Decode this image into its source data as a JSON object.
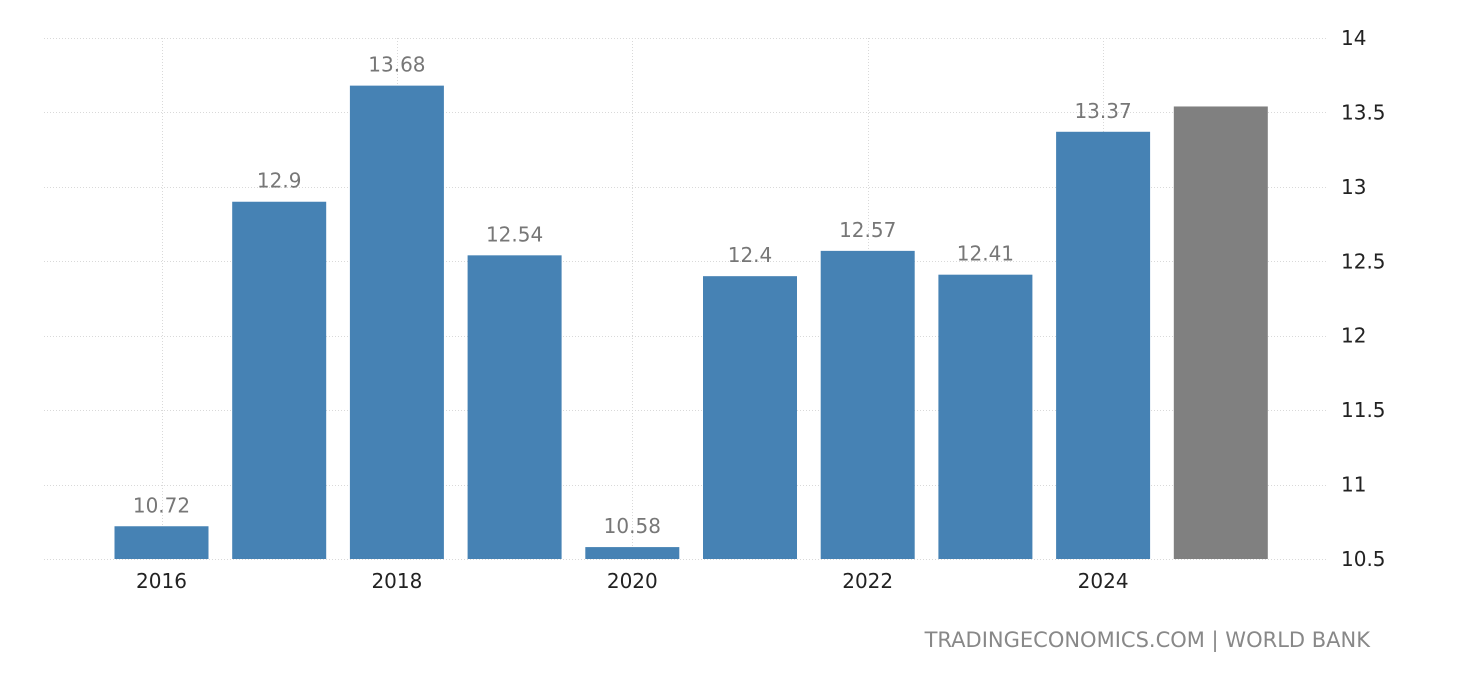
{
  "source_text": "TRADINGECONOMICS.COM | WORLD BANK",
  "colors": {
    "bar": "#4682b4",
    "forecast_bar": "#808080",
    "grid": "#d9d9d9",
    "label": "#777777",
    "tick": "#222222"
  },
  "chart_data": {
    "type": "bar",
    "categories": [
      "2016",
      "2017",
      "2018",
      "2019",
      "2020",
      "2021",
      "2022",
      "2023",
      "2024",
      "2025"
    ],
    "values": [
      10.72,
      12.9,
      13.68,
      12.54,
      10.58,
      12.4,
      12.57,
      12.41,
      13.37,
      13.54
    ],
    "value_labels": [
      "10.72",
      "12.9",
      "13.68",
      "12.54",
      "10.58",
      "12.4",
      "12.57",
      "12.41",
      "13.37",
      ""
    ],
    "forecast": [
      false,
      false,
      false,
      false,
      false,
      false,
      false,
      false,
      false,
      true
    ],
    "x_tick_labels": [
      "2016",
      "2018",
      "2020",
      "2022",
      "2024"
    ],
    "y_ticks": [
      10.5,
      11,
      11.5,
      12,
      12.5,
      13,
      13.5,
      14
    ],
    "y_tick_labels": [
      "10.5",
      "11",
      "11.5",
      "12",
      "12.5",
      "13",
      "13.5",
      "14"
    ],
    "ylim": [
      10.5,
      14
    ],
    "y_axis_side": "right",
    "grid": true,
    "legend": "none"
  }
}
